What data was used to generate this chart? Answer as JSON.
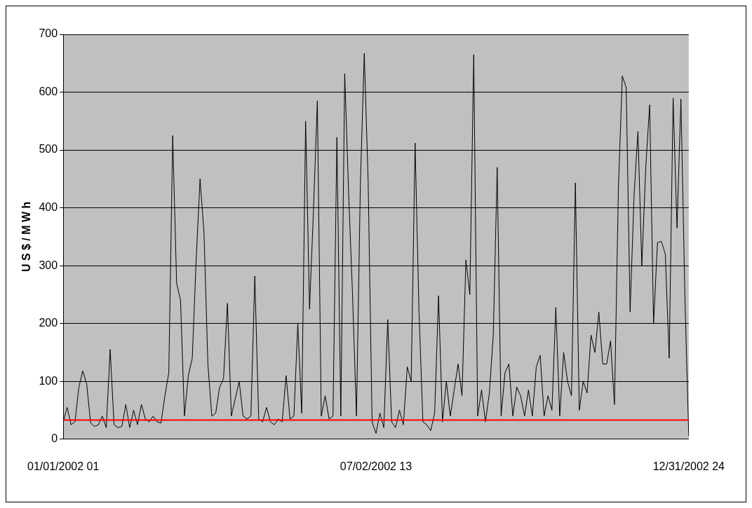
{
  "chart_data": {
    "type": "line",
    "ylabel": "U S $ / M W h",
    "categories": [
      "01/01/2002 01",
      null,
      null,
      null,
      null,
      null,
      null,
      null,
      null,
      null,
      null,
      null,
      null,
      null,
      null,
      null,
      null,
      null,
      null,
      null,
      null,
      null,
      null,
      null,
      null,
      null,
      null,
      null,
      null,
      null,
      null,
      null,
      null,
      null,
      null,
      null,
      null,
      null,
      null,
      null,
      null,
      null,
      null,
      null,
      null,
      null,
      null,
      null,
      null,
      null,
      null,
      null,
      null,
      null,
      null,
      null,
      null,
      null,
      null,
      null,
      null,
      null,
      null,
      null,
      null,
      null,
      null,
      null,
      null,
      null,
      null,
      null,
      null,
      null,
      null,
      null,
      null,
      null,
      null,
      null,
      "07/02/2002 13",
      null,
      null,
      null,
      null,
      null,
      null,
      null,
      null,
      null,
      null,
      null,
      null,
      null,
      null,
      null,
      null,
      null,
      null,
      null,
      null,
      null,
      null,
      null,
      null,
      null,
      null,
      null,
      null,
      null,
      null,
      null,
      null,
      null,
      null,
      null,
      null,
      null,
      null,
      null,
      null,
      null,
      null,
      null,
      null,
      null,
      null,
      null,
      null,
      null,
      null,
      null,
      null,
      null,
      null,
      null,
      null,
      null,
      null,
      null,
      null,
      null,
      null,
      null,
      null,
      null,
      null,
      null,
      null,
      null,
      null,
      null,
      null,
      null,
      null,
      null,
      null,
      null,
      null,
      null,
      "12/31/2002 24"
    ],
    "series": [
      {
        "color": "#000000",
        "values": [
          30,
          55,
          25,
          30,
          90,
          118,
          95,
          28,
          22,
          25,
          40,
          20,
          155,
          25,
          20,
          22,
          60,
          20,
          50,
          25,
          60,
          35,
          30,
          40,
          30,
          28,
          75,
          115,
          525,
          270,
          240,
          40,
          110,
          140,
          310,
          450,
          357,
          130,
          40,
          45,
          90,
          105,
          235,
          40,
          70,
          100,
          40,
          35,
          40,
          282,
          35,
          30,
          55,
          30,
          25,
          35,
          30,
          110,
          35,
          40,
          200,
          45,
          550,
          225,
          395,
          585,
          40,
          75,
          35,
          40,
          522,
          40,
          632,
          425,
          250,
          40,
          440,
          667,
          445,
          30,
          10,
          45,
          20,
          207,
          30,
          20,
          50,
          25,
          125,
          100,
          512,
          220,
          30,
          25,
          15,
          45,
          248,
          30,
          100,
          40,
          85,
          130,
          75,
          310,
          250,
          665,
          40,
          85,
          30,
          80,
          180,
          470,
          40,
          115,
          130,
          40,
          90,
          75,
          40,
          85,
          40,
          125,
          145,
          40,
          75,
          50,
          228,
          40,
          150,
          100,
          75,
          443,
          50,
          100,
          80,
          180,
          150,
          220,
          130,
          130,
          170,
          60,
          432,
          628,
          608,
          220,
          420,
          532,
          300,
          470,
          578,
          200,
          340,
          342,
          320,
          140,
          590,
          365,
          588,
          250,
          5
        ]
      }
    ],
    "ylim": [
      0,
      700
    ],
    "yticks": [
      0,
      100,
      200,
      300,
      400,
      500,
      600,
      700
    ],
    "grid": "y",
    "marker": "none",
    "line_style": "solid",
    "ref_lines": [
      {
        "axis": "y",
        "value": 33,
        "color": "#ff0000"
      }
    ]
  }
}
